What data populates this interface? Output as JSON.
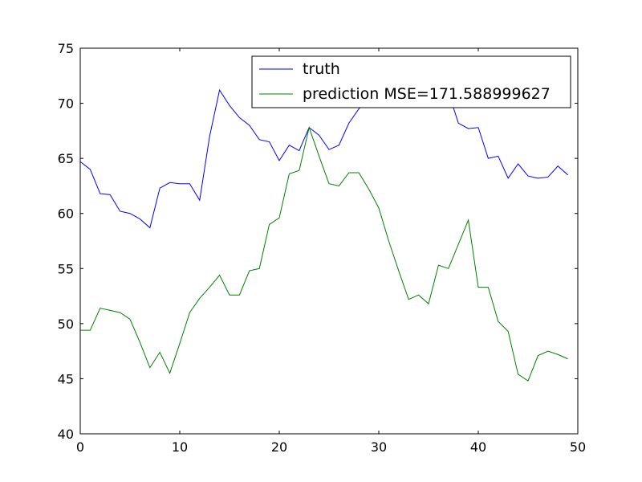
{
  "chart_data": {
    "type": "line",
    "x": [
      0,
      1,
      2,
      3,
      4,
      5,
      6,
      7,
      8,
      9,
      10,
      11,
      12,
      13,
      14,
      15,
      16,
      17,
      18,
      19,
      20,
      21,
      22,
      23,
      24,
      25,
      26,
      27,
      28,
      29,
      30,
      31,
      32,
      33,
      34,
      35,
      36,
      37,
      38,
      39,
      40,
      41,
      42,
      43,
      44,
      45,
      46,
      47,
      48,
      49
    ],
    "series": [
      {
        "name": "truth",
        "color": "#0000ff",
        "values": [
          64.7,
          64.0,
          61.8,
          61.7,
          60.2,
          60.0,
          59.5,
          58.7,
          62.3,
          62.8,
          62.7,
          62.7,
          61.2,
          67.0,
          71.2,
          69.8,
          68.7,
          68.0,
          66.7,
          66.5,
          64.8,
          66.2,
          65.7,
          67.8,
          67.1,
          65.8,
          66.2,
          68.2,
          69.5,
          70.5,
          71.0,
          71.0,
          71.0,
          71.0,
          71.0,
          71.0,
          71.0,
          71.0,
          68.2,
          67.7,
          67.8,
          65.0,
          65.2,
          63.2,
          64.5,
          63.4,
          63.2,
          63.3,
          64.3,
          63.5
        ]
      },
      {
        "name": "prediction MSE=171.588999627",
        "color": "#008000",
        "values": [
          49.4,
          49.4,
          51.4,
          51.2,
          51.0,
          50.4,
          48.3,
          46.0,
          47.4,
          45.5,
          48.2,
          51.0,
          52.3,
          53.3,
          54.4,
          52.6,
          52.6,
          54.8,
          55.0,
          59.0,
          59.6,
          63.6,
          63.9,
          67.8,
          65.2,
          62.7,
          62.5,
          63.7,
          63.7,
          62.2,
          60.5,
          57.5,
          54.8,
          52.2,
          52.6,
          51.8,
          55.3,
          55.0,
          57.2,
          59.4,
          53.3,
          53.3,
          50.2,
          49.3,
          45.4,
          44.8,
          47.1,
          47.5,
          47.2,
          46.8
        ]
      }
    ],
    "xlim": [
      0,
      50
    ],
    "ylim": [
      40,
      75
    ],
    "xticks": [
      "0",
      "10",
      "20",
      "30",
      "40",
      "50"
    ],
    "yticks": [
      "40",
      "45",
      "50",
      "55",
      "60",
      "65",
      "70",
      "75"
    ],
    "grid": false,
    "legend_position": "top-right"
  }
}
